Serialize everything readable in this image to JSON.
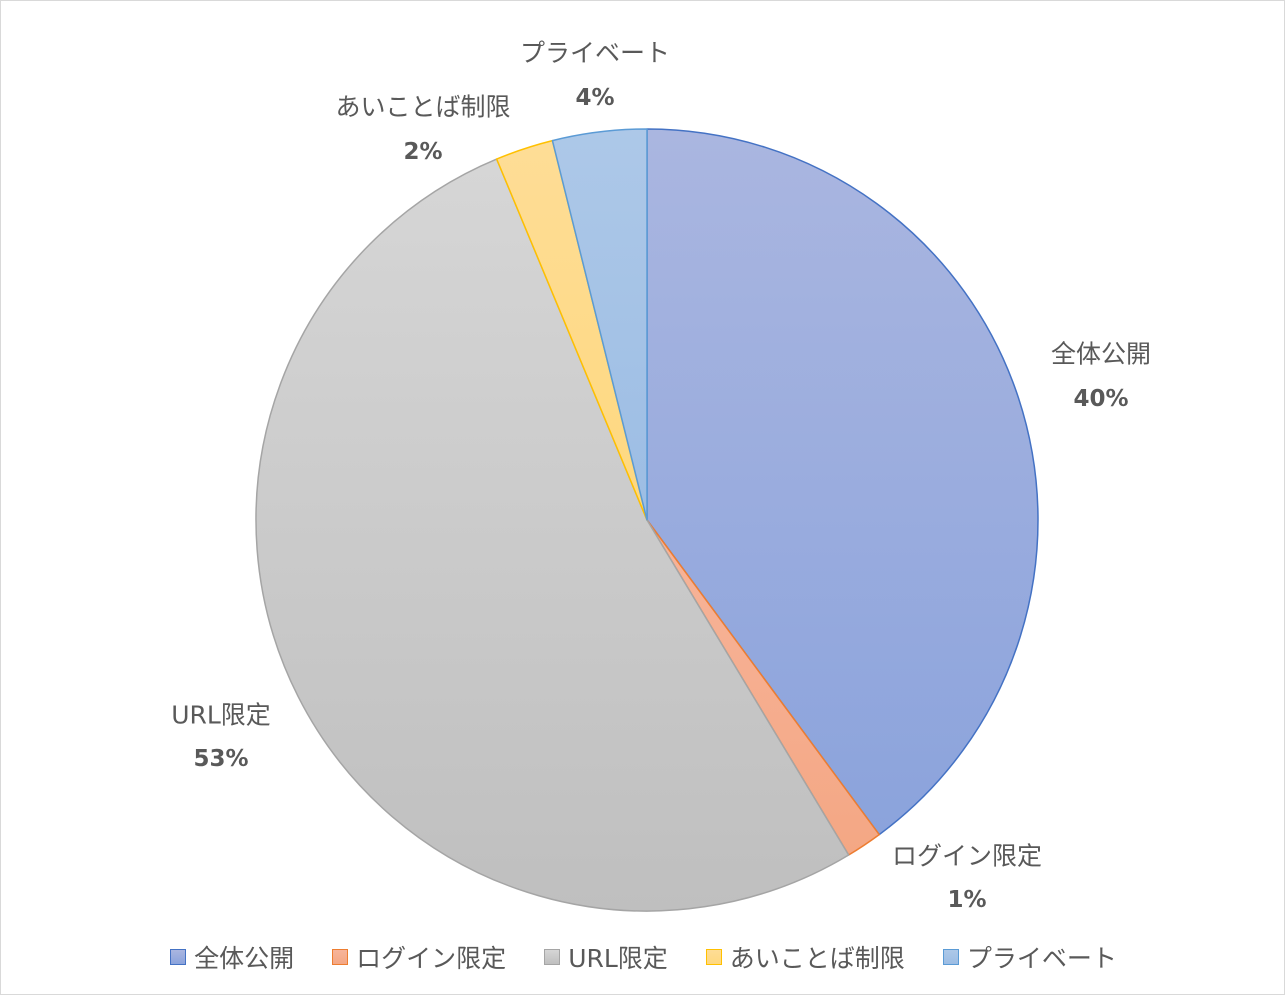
{
  "chart_data": {
    "type": "pie",
    "title": "",
    "start_angle_deg": 0,
    "direction": "clockwise",
    "legend_position": "bottom",
    "slices": [
      {
        "label": "全体公開",
        "value": 40,
        "value_label": "40%",
        "fill_top": "#aab6e0",
        "fill_bottom": "#8ba3dc",
        "stroke": "#4472c4"
      },
      {
        "label": "ログイン限定",
        "value": 1.5,
        "value_label": "1%",
        "fill_top": "#f7b49a",
        "fill_bottom": "#f4a784",
        "stroke": "#ed7d31"
      },
      {
        "label": "URL限定",
        "value": 52.5,
        "value_label": "53%",
        "fill_top": "#d6d6d6",
        "fill_bottom": "#bfbfbf",
        "stroke": "#a5a5a5"
      },
      {
        "label": "あいことば制限",
        "value": 2.4,
        "value_label": "2%",
        "fill_top": "#fedd96",
        "fill_bottom": "#fed87f",
        "stroke": "#ffc000"
      },
      {
        "label": "プライベート",
        "value": 3.9,
        "value_label": "4%",
        "fill_top": "#adc8e8",
        "fill_bottom": "#9cbde4",
        "stroke": "#5b9bd5"
      }
    ]
  }
}
